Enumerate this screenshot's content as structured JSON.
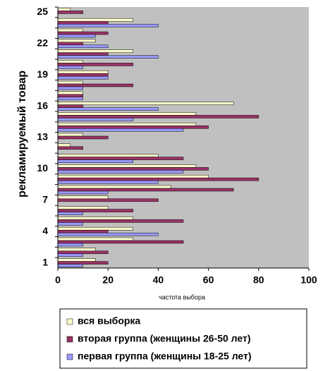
{
  "chart_data": {
    "type": "hbar",
    "x_label": "частота выбора",
    "y_label": "рекламируемый товар",
    "categories": [
      "1",
      null,
      null,
      "4",
      null,
      null,
      "7",
      null,
      null,
      "10",
      null,
      null,
      "13",
      null,
      null,
      "16",
      null,
      null,
      "19",
      null,
      null,
      "22",
      null,
      null,
      "25"
    ],
    "series": [
      {
        "name": "вся выборка",
        "color": "#ffffcc",
        "values": [
          15,
          15,
          30,
          30,
          30,
          20,
          20,
          45,
          60,
          55,
          40,
          5,
          10,
          55,
          55,
          70,
          10,
          10,
          20,
          10,
          30,
          15,
          10,
          30,
          5
        ]
      },
      {
        "name": "вторая группа (женщины 26-50 лет)",
        "color": "#993366",
        "values": [
          20,
          20,
          50,
          20,
          50,
          30,
          40,
          70,
          80,
          60,
          50,
          10,
          20,
          60,
          80,
          10,
          10,
          30,
          20,
          30,
          20,
          10,
          20,
          20,
          10
        ]
      },
      {
        "name": "первая группа (женщины 18-25 лет)",
        "color": "#9999ff",
        "values": [
          10,
          10,
          10,
          40,
          10,
          10,
          0,
          20,
          40,
          50,
          30,
          0,
          0,
          50,
          30,
          40,
          10,
          10,
          20,
          10,
          40,
          20,
          15,
          40,
          0
        ]
      }
    ],
    "xlim": [
      0,
      100
    ],
    "xticks": [
      0,
      20,
      40,
      60,
      80,
      100
    ]
  }
}
